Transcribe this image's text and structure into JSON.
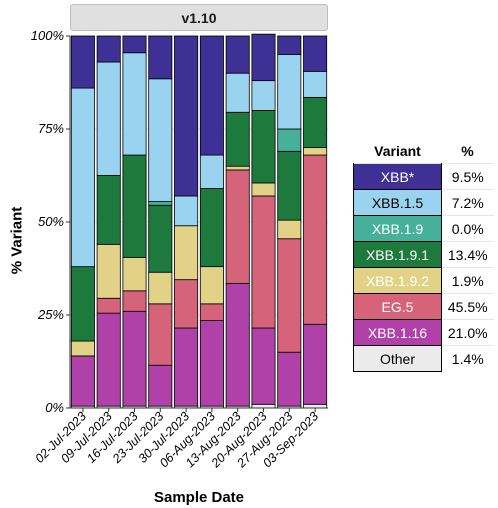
{
  "facet_title": "v1.10",
  "chart_data": {
    "type": "bar",
    "stacked": true,
    "xlabel": "Sample Date",
    "ylabel": "% Variant",
    "ylim": [
      0,
      100
    ],
    "yticks": [
      0,
      25,
      50,
      75,
      100
    ],
    "ytick_labels": [
      "0%",
      "25%",
      "50%",
      "75%",
      "100%"
    ],
    "grid": true,
    "legend_position": "right",
    "categories": [
      "02-Jul-2023",
      "09-Jul-2023",
      "16-Jul-2023",
      "23-Jul-2023",
      "30-Jul-2023",
      "06-Aug-2023",
      "13-Aug-2023",
      "20-Aug-2023",
      "27-Aug-2023",
      "03-Sep-2023"
    ],
    "series": [
      {
        "name": "Other",
        "color": "#ebebeb",
        "values": [
          0.5,
          0.5,
          0.5,
          0.5,
          0.5,
          0.5,
          0.5,
          1.0,
          0.5,
          1.0
        ]
      },
      {
        "name": "XBB.1.16",
        "color": "#b041a8",
        "values": [
          13.5,
          25.0,
          25.5,
          11.0,
          21.0,
          23.0,
          33.0,
          20.5,
          14.5,
          21.5
        ]
      },
      {
        "name": "EG.5",
        "color": "#d5637a",
        "values": [
          0.0,
          4.0,
          5.5,
          16.5,
          13.0,
          4.5,
          30.5,
          35.5,
          30.5,
          45.5
        ]
      },
      {
        "name": "XBB.1.9.2",
        "color": "#e2d287",
        "values": [
          4.0,
          14.5,
          9.0,
          8.5,
          14.5,
          10.0,
          1.0,
          3.5,
          5.0,
          2.0
        ]
      },
      {
        "name": "XBB.1.9.1",
        "color": "#1d7a3c",
        "values": [
          20.0,
          18.5,
          27.5,
          18.0,
          0.0,
          21.0,
          14.5,
          19.5,
          18.5,
          13.5
        ]
      },
      {
        "name": "XBB.1.9",
        "color": "#46b09a",
        "values": [
          0.0,
          0.0,
          0.0,
          1.0,
          0.0,
          0.0,
          0.0,
          0.0,
          6.0,
          0.0
        ]
      },
      {
        "name": "XBB.1.5",
        "color": "#9ad3f0",
        "values": [
          48.0,
          30.5,
          27.5,
          33.0,
          8.0,
          9.0,
          10.5,
          8.0,
          20.0,
          7.0
        ]
      },
      {
        "name": "XBB*",
        "color": "#3f3096",
        "values": [
          14.0,
          7.0,
          4.5,
          11.5,
          43.0,
          32.0,
          10.0,
          12.5,
          5.0,
          9.5
        ]
      }
    ]
  },
  "legend": {
    "header_variant": "Variant",
    "header_pct": "%",
    "rows": [
      {
        "name": "XBB*",
        "pct": "9.5%",
        "color": "#3f3096",
        "text_color": "#ffffff"
      },
      {
        "name": "XBB.1.5",
        "pct": "7.2%",
        "color": "#9ad3f0",
        "text_color": "#000000"
      },
      {
        "name": "XBB.1.9",
        "pct": "0.0%",
        "color": "#46b09a",
        "text_color": "#ffffff"
      },
      {
        "name": "XBB.1.9.1",
        "pct": "13.4%",
        "color": "#1d7a3c",
        "text_color": "#ffffff"
      },
      {
        "name": "XBB.1.9.2",
        "pct": "1.9%",
        "color": "#e2d287",
        "text_color": "#ffffff"
      },
      {
        "name": "EG.5",
        "pct": "45.5%",
        "color": "#d5637a",
        "text_color": "#ffffff"
      },
      {
        "name": "XBB.1.16",
        "pct": "21.0%",
        "color": "#b041a8",
        "text_color": "#ffffff"
      },
      {
        "name": "Other",
        "pct": "1.4%",
        "color": "#ebebeb",
        "text_color": "#000000"
      }
    ]
  }
}
